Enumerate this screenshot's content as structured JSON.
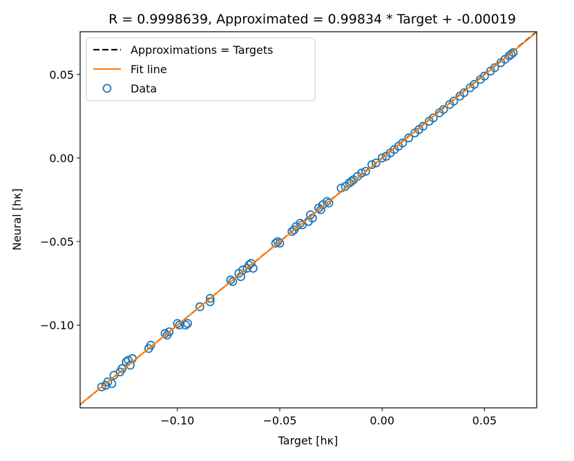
{
  "chart_data": {
    "type": "scatter",
    "title": "R = 0.9998639, Approximated = 0.99834 * Target + -0.00019",
    "xlabel": "Target [hκ]",
    "ylabel": "Neural [hκ]",
    "xlim": [
      -0.1475,
      0.0755
    ],
    "ylim": [
      -0.1495,
      0.0755
    ],
    "xticks": [
      -0.1,
      -0.05,
      0.0,
      0.05
    ],
    "xtick_labels": [
      "−0.10",
      "−0.05",
      "0.00",
      "0.05"
    ],
    "yticks": [
      -0.1,
      -0.05,
      0.0,
      0.05
    ],
    "ytick_labels": [
      "−0.10",
      "−0.05",
      "0.00",
      "0.05"
    ],
    "grid": false,
    "legend_position": "top-left",
    "colors": {
      "data": "#1f77b4",
      "fit": "#ff7f0e",
      "identity": "#000000"
    },
    "lines": [
      {
        "name": "Approximations = Targets",
        "style": "dashed",
        "slope": 1.0,
        "intercept": 0.0
      },
      {
        "name": "Fit line",
        "style": "solid",
        "slope": 0.99834,
        "intercept": -0.00019
      }
    ],
    "series": [
      {
        "name": "Data",
        "marker": "open-circle",
        "x": [
          -0.137,
          -0.135,
          -0.134,
          -0.132,
          -0.131,
          -0.128,
          -0.127,
          -0.125,
          -0.124,
          -0.123,
          -0.122,
          -0.114,
          -0.113,
          -0.106,
          -0.105,
          -0.104,
          -0.1,
          -0.099,
          -0.096,
          -0.095,
          -0.089,
          -0.084,
          -0.084,
          -0.074,
          -0.073,
          -0.07,
          -0.069,
          -0.068,
          -0.066,
          -0.065,
          -0.064,
          -0.063,
          -0.052,
          -0.051,
          -0.05,
          -0.044,
          -0.043,
          -0.042,
          -0.04,
          -0.039,
          -0.036,
          -0.035,
          -0.034,
          -0.031,
          -0.03,
          -0.029,
          -0.027,
          -0.026,
          -0.02,
          -0.018,
          -0.016,
          -0.015,
          -0.014,
          -0.012,
          -0.01,
          -0.008,
          -0.005,
          -0.003,
          0.0,
          0.002,
          0.004,
          0.006,
          0.008,
          0.01,
          0.013,
          0.016,
          0.018,
          0.02,
          0.023,
          0.025,
          0.028,
          0.03,
          0.033,
          0.035,
          0.038,
          0.04,
          0.043,
          0.045,
          0.048,
          0.05,
          0.053,
          0.055,
          0.058,
          0.06,
          0.062,
          0.063,
          0.064
        ],
        "y": [
          -0.137,
          -0.136,
          -0.134,
          -0.135,
          -0.13,
          -0.128,
          -0.126,
          -0.122,
          -0.121,
          -0.124,
          -0.12,
          -0.114,
          -0.112,
          -0.105,
          -0.106,
          -0.104,
          -0.099,
          -0.1,
          -0.1,
          -0.099,
          -0.089,
          -0.086,
          -0.084,
          -0.073,
          -0.074,
          -0.069,
          -0.071,
          -0.067,
          -0.066,
          -0.064,
          -0.063,
          -0.066,
          -0.051,
          -0.05,
          -0.051,
          -0.044,
          -0.043,
          -0.041,
          -0.039,
          -0.04,
          -0.038,
          -0.034,
          -0.036,
          -0.03,
          -0.031,
          -0.028,
          -0.026,
          -0.027,
          -0.018,
          -0.017,
          -0.015,
          -0.014,
          -0.013,
          -0.011,
          -0.009,
          -0.008,
          -0.004,
          -0.003,
          0.0,
          0.001,
          0.003,
          0.005,
          0.007,
          0.009,
          0.012,
          0.015,
          0.017,
          0.019,
          0.022,
          0.024,
          0.027,
          0.029,
          0.032,
          0.034,
          0.037,
          0.039,
          0.042,
          0.044,
          0.047,
          0.049,
          0.052,
          0.054,
          0.057,
          0.059,
          0.061,
          0.062,
          0.063
        ]
      }
    ]
  }
}
